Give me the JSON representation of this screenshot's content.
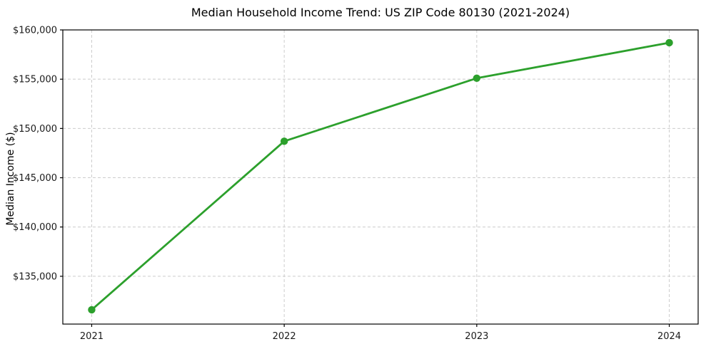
{
  "chart_data": {
    "type": "line",
    "title": "Median Household Income Trend: US ZIP Code 80130 (2021-2024)",
    "xlabel": "",
    "ylabel": "Median Income ($)",
    "categories": [
      "2021",
      "2022",
      "2023",
      "2024"
    ],
    "series": [
      {
        "name": "Median Household Income",
        "values": [
          131600,
          148700,
          155100,
          158700
        ]
      }
    ],
    "ylim": [
      130150,
      160000
    ],
    "y_ticks": [
      135000,
      140000,
      145000,
      150000,
      155000,
      160000
    ],
    "y_tick_labels": [
      "$135,000",
      "$140,000",
      "$145,000",
      "$150,000",
      "$155,000",
      "$160,000"
    ],
    "x_tick_labels": [
      "2021",
      "2022",
      "2023",
      "2024"
    ],
    "grid": true,
    "grid_style": "dashed",
    "legend_position": "none",
    "marker": "circle",
    "colors": {
      "line": "#2ca02c",
      "marker": "#2ca02c",
      "grid": "#cccccc",
      "border": "#000000",
      "background": "#ffffff",
      "text": "#1a1a1a"
    }
  }
}
